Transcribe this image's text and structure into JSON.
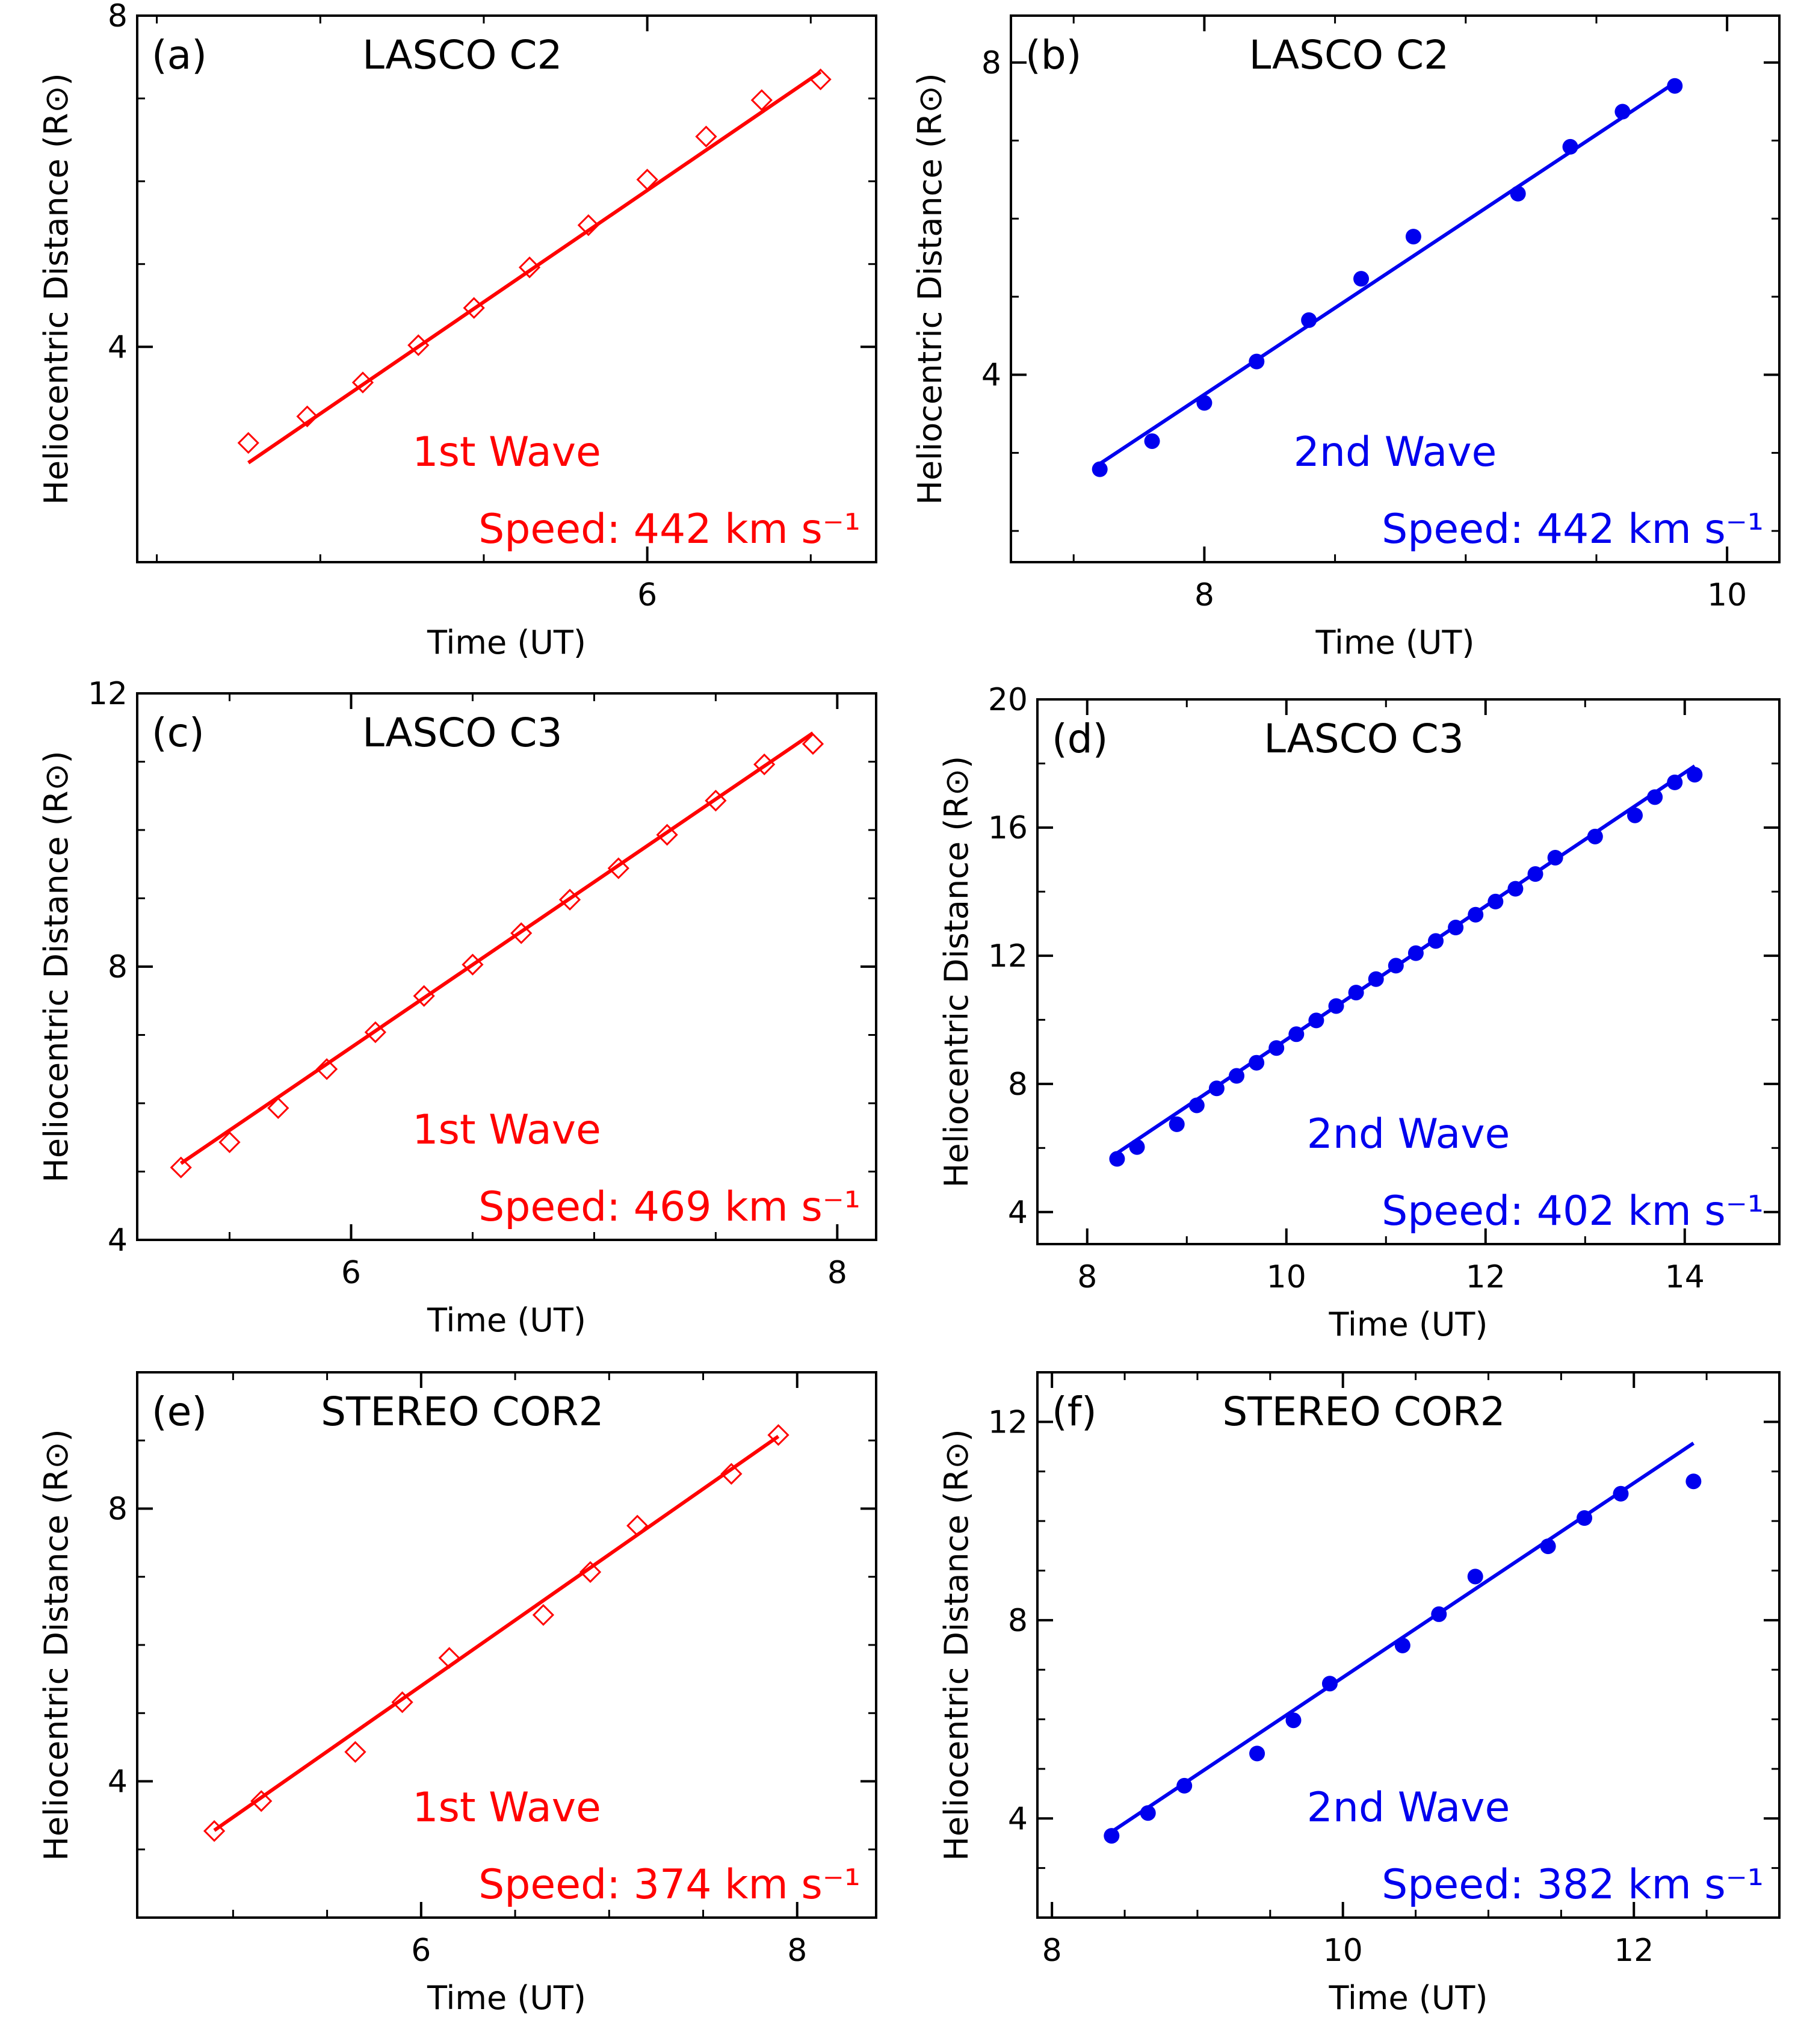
{
  "colors": {
    "red": "#ff0000",
    "blue": "#0000ee",
    "axis": "#000000"
  },
  "chart_data": [
    {
      "panel": "(a)",
      "type": "scatter",
      "title": "LASCO C2",
      "xlabel": "Time (UT)",
      "ylabel": "Heliocentric Distance (R⊙)",
      "xlim": [
        4.44,
        6.7
      ],
      "ylim": [
        1.4,
        8.0
      ],
      "xticks": [
        6
      ],
      "yticks": [
        4,
        8
      ],
      "xminor": [
        4.5,
        5.0,
        5.5,
        6.5
      ],
      "yminor": [
        5,
        6,
        7
      ],
      "marker": "diamond",
      "color": "#ff0000",
      "wave": "1st Wave",
      "speed": "Speed: 442 km s⁻¹",
      "x": [
        4.78,
        4.96,
        5.13,
        5.3,
        5.47,
        5.64,
        5.82,
        6.0,
        6.18,
        6.35,
        6.53
      ],
      "y": [
        2.84,
        3.16,
        3.57,
        4.02,
        4.47,
        4.96,
        5.47,
        6.02,
        6.54,
        6.98,
        7.23
      ],
      "fit": [
        [
          4.78,
          2.6
        ],
        [
          6.53,
          7.32
        ]
      ]
    },
    {
      "panel": "(b)",
      "type": "scatter",
      "title": "LASCO C2",
      "xlabel": "Time (UT)",
      "ylabel": "Heliocentric Distance (R⊙)",
      "xlim": [
        7.26,
        10.2
      ],
      "ylim": [
        1.6,
        8.6
      ],
      "xticks": [
        8,
        10
      ],
      "yticks": [
        4,
        8
      ],
      "xminor": [
        7.5,
        8.5,
        9.0,
        9.5
      ],
      "yminor": [
        2,
        3,
        5,
        6,
        7
      ],
      "marker": "circle",
      "color": "#0000ee",
      "wave": "2nd Wave",
      "speed": "Speed: 442 km s⁻¹",
      "x": [
        7.6,
        7.8,
        8.0,
        8.2,
        8.4,
        8.6,
        8.8,
        9.2,
        9.4,
        9.6,
        9.8
      ],
      "y": [
        2.79,
        3.15,
        3.64,
        4.17,
        4.7,
        5.23,
        5.77,
        6.32,
        6.92,
        7.37,
        7.7
      ],
      "fit": [
        [
          7.6,
          2.86
        ],
        [
          9.8,
          7.74
        ]
      ]
    },
    {
      "panel": "(c)",
      "type": "scatter",
      "title": "LASCO C3",
      "xlabel": "Time (UT)",
      "ylabel": "Heliocentric Distance (R⊙)",
      "xlim": [
        5.12,
        8.16
      ],
      "ylim": [
        4.0,
        12.0
      ],
      "xticks": [
        6,
        8
      ],
      "yticks": [
        4,
        8,
        12
      ],
      "xminor": [
        5.5,
        6.5,
        7.0,
        7.5
      ],
      "yminor": [
        5,
        6,
        7,
        9,
        10,
        11
      ],
      "marker": "diamond",
      "color": "#ff0000",
      "wave": "1st Wave",
      "speed": "Speed: 469 km s⁻¹",
      "x": [
        5.3,
        5.5,
        5.7,
        5.9,
        6.1,
        6.3,
        6.5,
        6.7,
        6.9,
        7.1,
        7.3,
        7.5,
        7.7,
        7.9
      ],
      "y": [
        5.06,
        5.43,
        5.93,
        6.5,
        7.04,
        7.57,
        8.03,
        8.49,
        8.98,
        9.44,
        9.93,
        10.43,
        10.96,
        11.26
      ],
      "fit": [
        [
          5.3,
          5.12
        ],
        [
          7.9,
          11.42
        ]
      ]
    },
    {
      "panel": "(d)",
      "type": "scatter",
      "title": "LASCO C3",
      "xlabel": "Time (UT)",
      "ylabel": "Heliocentric Distance (R⊙)",
      "xlim": [
        7.5,
        14.95
      ],
      "ylim": [
        3.0,
        20.0
      ],
      "xticks": [
        8,
        10,
        12,
        14
      ],
      "yticks": [
        4,
        8,
        12,
        16,
        20
      ],
      "xminor": [
        9,
        11,
        13
      ],
      "yminor": [
        6,
        10,
        14,
        18
      ],
      "marker": "circle",
      "color": "#0000ee",
      "wave": "2nd Wave",
      "speed": "Speed: 402 km s⁻¹",
      "x": [
        8.3,
        8.5,
        8.9,
        9.1,
        9.3,
        9.5,
        9.7,
        9.9,
        10.1,
        10.3,
        10.5,
        10.7,
        10.9,
        11.1,
        11.3,
        11.5,
        11.7,
        11.9,
        12.1,
        12.3,
        12.5,
        12.7,
        13.1,
        13.5,
        13.7,
        13.9,
        14.1
      ],
      "y": [
        5.66,
        6.03,
        6.74,
        7.33,
        7.86,
        8.25,
        8.66,
        9.12,
        9.55,
        9.98,
        10.43,
        10.85,
        11.27,
        11.69,
        12.08,
        12.46,
        12.88,
        13.28,
        13.69,
        14.09,
        14.55,
        15.06,
        15.72,
        16.38,
        16.95,
        17.41,
        17.65
      ],
      "fit": [
        [
          8.3,
          5.84
        ],
        [
          14.1,
          17.92
        ]
      ]
    },
    {
      "panel": "(e)",
      "type": "scatter",
      "title": "STEREO COR2",
      "xlabel": "Time (UT)",
      "ylabel": "Heliocentric Distance (R⊙)",
      "xlim": [
        4.49,
        8.42
      ],
      "ylim": [
        2.0,
        10.0
      ],
      "xticks": [
        6,
        8
      ],
      "yticks": [
        4,
        8
      ],
      "xminor": [
        5.0,
        5.5,
        6.5,
        7.0,
        7.5
      ],
      "yminor": [
        3,
        5,
        6,
        7,
        9
      ],
      "marker": "diamond",
      "color": "#ff0000",
      "wave": "1st Wave",
      "speed": "Speed: 374 km s⁻¹",
      "x": [
        4.9,
        5.15,
        5.65,
        5.9,
        6.15,
        6.65,
        6.9,
        7.15,
        7.65,
        7.9
      ],
      "y": [
        3.27,
        3.71,
        4.43,
        5.16,
        5.81,
        6.44,
        7.07,
        7.75,
        8.51,
        9.08
      ],
      "fit": [
        [
          4.9,
          3.28
        ],
        [
          7.9,
          9.06
        ]
      ]
    },
    {
      "panel": "(f)",
      "type": "scatter",
      "title": "STEREO COR2",
      "xlabel": "Time (UT)",
      "ylabel": "Heliocentric Distance (R⊙)",
      "xlim": [
        7.9,
        13.0
      ],
      "ylim": [
        2.0,
        13.0
      ],
      "xticks": [
        8,
        10,
        12
      ],
      "yticks": [
        4,
        8,
        12
      ],
      "xminor": [
        8.5,
        9.0,
        9.5,
        10.5,
        11.0,
        11.5,
        12.5
      ],
      "yminor": [
        3,
        5,
        6,
        7,
        9,
        10,
        11
      ],
      "marker": "circle",
      "color": "#0000ee",
      "wave": "2nd Wave",
      "speed": "Speed: 382 km s⁻¹",
      "x": [
        8.41,
        8.66,
        8.91,
        9.41,
        9.66,
        9.91,
        10.41,
        10.66,
        10.91,
        11.41,
        11.66,
        11.91,
        12.41
      ],
      "y": [
        3.65,
        4.11,
        4.66,
        5.31,
        5.98,
        6.72,
        7.49,
        8.12,
        8.88,
        9.49,
        10.06,
        10.55,
        10.8
      ],
      "fit": [
        [
          8.41,
          3.73
        ],
        [
          12.41,
          11.57
        ]
      ]
    }
  ]
}
